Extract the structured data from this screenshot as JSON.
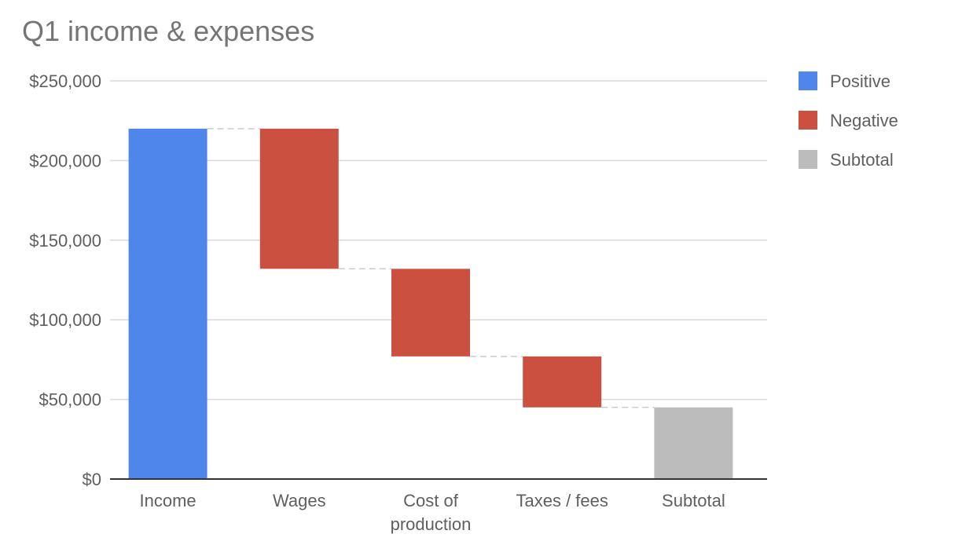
{
  "chart_data": {
    "type": "bar",
    "subtype": "waterfall",
    "title": "Q1 income & expenses",
    "xlabel": "",
    "ylabel": "",
    "ylim": [
      0,
      250000
    ],
    "yticks": [
      0,
      50000,
      100000,
      150000,
      200000,
      250000
    ],
    "ytick_labels": [
      "$0",
      "$50,000",
      "$100,000",
      "$150,000",
      "$200,000",
      "$250,000"
    ],
    "grid": true,
    "legend_position": "right",
    "categories": [
      {
        "lines": [
          "Income"
        ]
      },
      {
        "lines": [
          "Wages"
        ]
      },
      {
        "lines": [
          "Cost of",
          "production"
        ]
      },
      {
        "lines": [
          "Taxes / fees"
        ]
      },
      {
        "lines": [
          "Subtotal"
        ]
      }
    ],
    "bars": [
      {
        "start": 0,
        "end": 220000,
        "kind": "positive"
      },
      {
        "start": 220000,
        "end": 132000,
        "kind": "negative"
      },
      {
        "start": 132000,
        "end": 77000,
        "kind": "negative"
      },
      {
        "start": 77000,
        "end": 45000,
        "kind": "negative"
      },
      {
        "start": 0,
        "end": 45000,
        "kind": "subtotal"
      }
    ],
    "legend": [
      {
        "label": "Positive",
        "color": "#4f86ec"
      },
      {
        "label": "Negative",
        "color": "#cc5040"
      },
      {
        "label": "Subtotal",
        "color": "#bcbcbc"
      }
    ],
    "colors": {
      "positive": "#4f86ec",
      "negative": "#cc5040",
      "subtotal": "#bcbcbc",
      "grid": "#d9d9d9",
      "axis": "#333333",
      "connector": "#cccccc"
    }
  }
}
